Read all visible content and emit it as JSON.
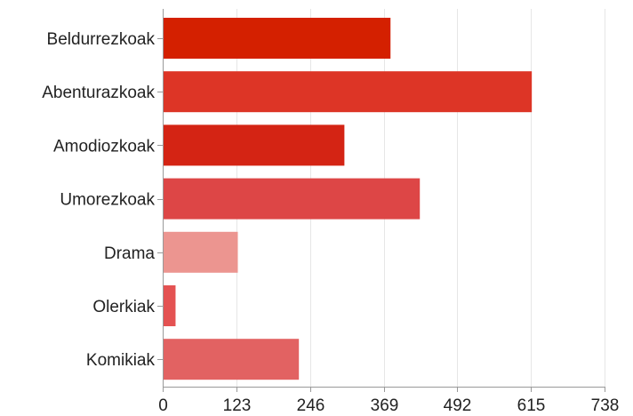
{
  "chart_data": {
    "type": "bar",
    "orientation": "horizontal",
    "categories": [
      "Beldurrezkoak",
      "Abenturazkoak",
      "Amodiozkoak",
      "Umorezkoak",
      "Drama",
      "Olerkiak",
      "Komikiak"
    ],
    "values": [
      379,
      615,
      302,
      428,
      124,
      20,
      226
    ],
    "colors": [
      "#d42000",
      "#dd3526",
      "#d42414",
      "#dd4646",
      "#ec9590",
      "#e45252",
      "#e26262"
    ],
    "xticks": [
      "0",
      "123",
      "246",
      "369",
      "492",
      "615",
      "738"
    ],
    "xlim": [
      0,
      738
    ],
    "title": "",
    "xlabel": "",
    "ylabel": "",
    "grid": true,
    "legend": "none"
  }
}
